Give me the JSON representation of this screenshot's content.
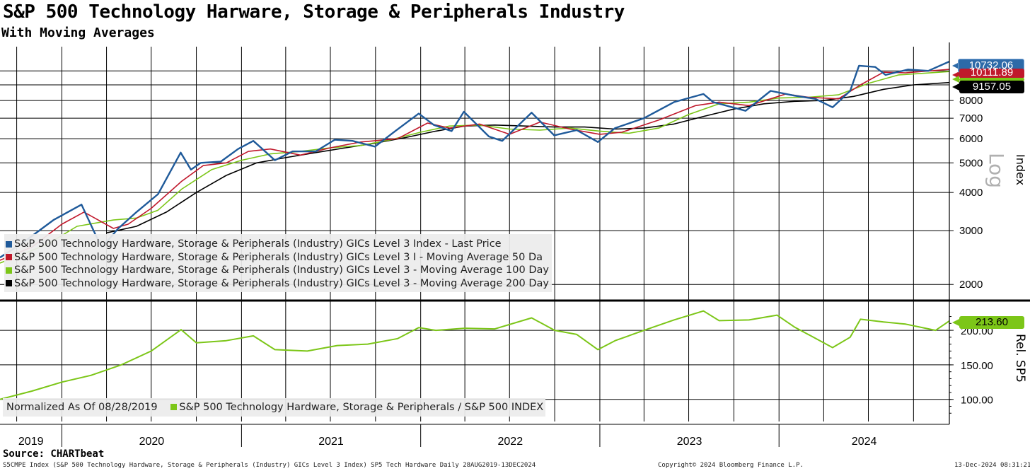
{
  "title": "S&P 500 Technology Harware, Storage & Peripherals Industry",
  "subtitle": "With Moving Averages",
  "source": "Source: CHARTbeat",
  "footer": {
    "left": "S5CMPE Index (S&P 500 Technology Hardware, Storage & Peripherals (Industry) GICs Level 3 Index) SP5 Tech Hardware  Daily 28AUG2019-13DEC2024",
    "center": "Copyright© 2024 Bloomberg Finance L.P.",
    "right": "13-Dec-2024 08:31:21"
  },
  "colors": {
    "price": "#1f5a9a",
    "ma50": "#c0182b",
    "ma100": "#7cc618",
    "ma200": "#000000",
    "relative": "#7cc618"
  },
  "top_panel": {
    "axis_title": "Index",
    "scale_label": "Log",
    "legend": [
      {
        "label": "S&P 500 Technology Hardware, Storage & Peripherals (Industry) GICs Level 3 Index - Last Price",
        "color": "#1f5a9a"
      },
      {
        "label": "S&P 500 Technology Hardware, Storage & Peripherals (Industry) GICs Level 3 I - Moving Average 50 Da",
        "color": "#c0182b"
      },
      {
        "label": "S&P 500 Technology Hardware, Storage & Peripherals (Industry) GICs Level 3 - Moving Average 100 Day",
        "color": "#7cc618"
      },
      {
        "label": "S&P 500 Technology Hardware, Storage & Peripherals (Industry) GICs Level 3 - Moving Average 200 Day",
        "color": "#000000"
      }
    ],
    "badges": [
      {
        "text": "10732.06",
        "bg": "#2d6aa8",
        "fg": "#ffffff"
      },
      {
        "text": "10111.89",
        "bg": "#c0182b",
        "fg": "#ffffff"
      },
      {
        "text": "",
        "bg": "#7cc618",
        "fg": "#000000"
      },
      {
        "text": "9157.05",
        "bg": "#000000",
        "fg": "#ffffff"
      }
    ]
  },
  "bottom_panel": {
    "axis_title": "Rel. SP5",
    "legend_note": "Normalized As Of 08/28/2019",
    "legend_label": "S&P 500 Technology Hardware, Storage & Peripherals / S&P 500 INDEX",
    "legend_color": "#7cc618",
    "badge": {
      "text": "213.60",
      "bg": "#7cc618",
      "fg": "#000000"
    }
  },
  "chart_data": {
    "type": "line",
    "x_start": "2019-08-28",
    "x_end": "2024-12-13",
    "x_tick_labels": [
      "2019",
      "2020",
      "2021",
      "2022",
      "2023",
      "2024"
    ],
    "top": {
      "y_scale": "log",
      "ylim": [
        1800,
        12000
      ],
      "y_ticks": [
        2000,
        3000,
        4000,
        5000,
        6000,
        7000,
        8000
      ],
      "y_tick_labels": [
        "2000",
        "3000",
        "4000",
        "5000",
        "6000",
        "7000",
        "8000"
      ],
      "series": [
        {
          "name": "S&P 500 Technology Hardware, Storage & Peripherals (Industry) GICs Level 3 Index - Last Price",
          "points": [
            [
              "2019-08-28",
              2450
            ],
            [
              "2019-10-15",
              2750
            ],
            [
              "2019-12-15",
              3250
            ],
            [
              "2020-02-10",
              3650
            ],
            [
              "2020-03-10",
              2900
            ],
            [
              "2020-03-23",
              2650
            ],
            [
              "2020-04-25",
              3050
            ],
            [
              "2020-06-01",
              3450
            ],
            [
              "2020-07-15",
              3950
            ],
            [
              "2020-08-30",
              5400
            ],
            [
              "2020-09-20",
              4750
            ],
            [
              "2020-10-10",
              5000
            ],
            [
              "2020-11-20",
              5050
            ],
            [
              "2020-12-25",
              5550
            ],
            [
              "2021-01-25",
              5900
            ],
            [
              "2021-03-10",
              5100
            ],
            [
              "2021-04-15",
              5450
            ],
            [
              "2021-06-01",
              5450
            ],
            [
              "2021-07-10",
              5950
            ],
            [
              "2021-08-15",
              5900
            ],
            [
              "2021-09-30",
              5650
            ],
            [
              "2021-11-10",
              6350
            ],
            [
              "2021-12-28",
              7250
            ],
            [
              "2022-01-28",
              6650
            ],
            [
              "2022-03-05",
              6350
            ],
            [
              "2022-03-30",
              7350
            ],
            [
              "2022-05-20",
              6100
            ],
            [
              "2022-06-16",
              5900
            ],
            [
              "2022-08-15",
              7300
            ],
            [
              "2022-09-30",
              6150
            ],
            [
              "2022-11-15",
              6400
            ],
            [
              "2022-12-28",
              5850
            ],
            [
              "2023-02-01",
              6500
            ],
            [
              "2023-04-01",
              7000
            ],
            [
              "2023-06-01",
              7900
            ],
            [
              "2023-07-31",
              8400
            ],
            [
              "2023-08-20",
              7900
            ],
            [
              "2023-10-25",
              7400
            ],
            [
              "2023-12-15",
              8600
            ],
            [
              "2024-02-01",
              8300
            ],
            [
              "2024-03-15",
              8100
            ],
            [
              "2024-04-19",
              7600
            ],
            [
              "2024-05-25",
              8600
            ],
            [
              "2024-06-12",
              10400
            ],
            [
              "2024-07-15",
              10300
            ],
            [
              "2024-08-05",
              9700
            ],
            [
              "2024-09-20",
              10100
            ],
            [
              "2024-10-31",
              10000
            ],
            [
              "2024-12-13",
              10732
            ]
          ]
        },
        {
          "name": "S&P 500 Technology Hardware, Storage & Peripherals (Industry) GICs Level 3 I - Moving Average 50 Da",
          "points": [
            [
              "2019-08-28",
              2400
            ],
            [
              "2019-11-01",
              2650
            ],
            [
              "2020-01-01",
              3150
            ],
            [
              "2020-02-15",
              3450
            ],
            [
              "2020-04-15",
              3050
            ],
            [
              "2020-05-15",
              3150
            ],
            [
              "2020-07-01",
              3550
            ],
            [
              "2020-09-01",
              4350
            ],
            [
              "2020-10-15",
              4900
            ],
            [
              "2020-12-01",
              5000
            ],
            [
              "2021-01-15",
              5450
            ],
            [
              "2021-03-01",
              5550
            ],
            [
              "2021-05-01",
              5300
            ],
            [
              "2021-07-01",
              5600
            ],
            [
              "2021-09-01",
              5850
            ],
            [
              "2021-11-15",
              6000
            ],
            [
              "2022-01-15",
              6750
            ],
            [
              "2022-03-01",
              6500
            ],
            [
              "2022-05-01",
              6700
            ],
            [
              "2022-07-01",
              6200
            ],
            [
              "2022-09-01",
              6800
            ],
            [
              "2022-11-01",
              6450
            ],
            [
              "2023-01-01",
              6200
            ],
            [
              "2023-02-15",
              6300
            ],
            [
              "2023-05-01",
              6900
            ],
            [
              "2023-07-15",
              7700
            ],
            [
              "2023-09-01",
              7900
            ],
            [
              "2023-11-01",
              7700
            ],
            [
              "2024-01-15",
              8400
            ],
            [
              "2024-03-01",
              8200
            ],
            [
              "2024-05-01",
              8100
            ],
            [
              "2024-06-15",
              9000
            ],
            [
              "2024-08-01",
              9900
            ],
            [
              "2024-09-15",
              9850
            ],
            [
              "2024-12-13",
              10112
            ]
          ]
        },
        {
          "name": "S&P 500 Technology Hardware, Storage & Peripherals (Industry) GICs Level 3 - Moving Average 100 Day",
          "points": [
            [
              "2019-08-28",
              2350
            ],
            [
              "2019-12-01",
              2700
            ],
            [
              "2020-02-01",
              3100
            ],
            [
              "2020-04-15",
              3250
            ],
            [
              "2020-06-01",
              3300
            ],
            [
              "2020-07-15",
              3500
            ],
            [
              "2020-09-01",
              4100
            ],
            [
              "2020-11-01",
              4750
            ],
            [
              "2021-01-01",
              5100
            ],
            [
              "2021-03-01",
              5350
            ],
            [
              "2021-05-01",
              5450
            ],
            [
              "2021-07-01",
              5600
            ],
            [
              "2021-09-01",
              5700
            ],
            [
              "2021-11-01",
              5950
            ],
            [
              "2022-01-01",
              6300
            ],
            [
              "2022-03-01",
              6600
            ],
            [
              "2022-05-01",
              6650
            ],
            [
              "2022-07-01",
              6450
            ],
            [
              "2022-09-01",
              6400
            ],
            [
              "2022-11-01",
              6500
            ],
            [
              "2023-01-01",
              6350
            ],
            [
              "2023-03-01",
              6250
            ],
            [
              "2023-05-01",
              6500
            ],
            [
              "2023-07-01",
              7200
            ],
            [
              "2023-09-01",
              7800
            ],
            [
              "2023-11-01",
              7900
            ],
            [
              "2024-01-01",
              8150
            ],
            [
              "2024-03-01",
              8200
            ],
            [
              "2024-05-01",
              8350
            ],
            [
              "2024-07-01",
              9100
            ],
            [
              "2024-09-01",
              9700
            ],
            [
              "2024-12-13",
              9950
            ]
          ]
        },
        {
          "name": "S&P 500 Technology Hardware, Storage & Peripherals (Industry) GICs Level 3 - Moving Average 200 Day",
          "points": [
            [
              "2020-04-01",
              2950
            ],
            [
              "2020-06-01",
              3100
            ],
            [
              "2020-08-01",
              3450
            ],
            [
              "2020-10-01",
              4000
            ],
            [
              "2020-12-01",
              4550
            ],
            [
              "2021-02-01",
              5000
            ],
            [
              "2021-04-01",
              5200
            ],
            [
              "2021-06-01",
              5400
            ],
            [
              "2021-08-01",
              5600
            ],
            [
              "2021-10-01",
              5800
            ],
            [
              "2021-12-01",
              6050
            ],
            [
              "2022-02-01",
              6350
            ],
            [
              "2022-04-01",
              6600
            ],
            [
              "2022-06-01",
              6650
            ],
            [
              "2022-08-01",
              6600
            ],
            [
              "2022-10-01",
              6550
            ],
            [
              "2022-12-01",
              6550
            ],
            [
              "2023-02-01",
              6450
            ],
            [
              "2023-04-01",
              6500
            ],
            [
              "2023-06-01",
              6700
            ],
            [
              "2023-08-01",
              7100
            ],
            [
              "2023-10-01",
              7500
            ],
            [
              "2023-12-01",
              7800
            ],
            [
              "2024-02-01",
              7950
            ],
            [
              "2024-04-01",
              8000
            ],
            [
              "2024-06-01",
              8250
            ],
            [
              "2024-08-01",
              8700
            ],
            [
              "2024-10-01",
              9000
            ],
            [
              "2024-12-13",
              9157
            ]
          ]
        }
      ]
    },
    "bottom": {
      "y_scale": "linear",
      "ylim": [
        68,
        240
      ],
      "y_ticks": [
        100,
        150,
        200
      ],
      "y_tick_labels": [
        "100.00",
        "150.00",
        "200.00"
      ],
      "series": [
        {
          "name": "S&P 500 Technology Hardware, Storage & Peripherals / S&P 500 INDEX",
          "points": [
            [
              "2019-08-28",
              100
            ],
            [
              "2019-11-01",
              112
            ],
            [
              "2020-01-01",
              125
            ],
            [
              "2020-03-01",
              135
            ],
            [
              "2020-05-01",
              150
            ],
            [
              "2020-07-01",
              170
            ],
            [
              "2020-08-31",
              201
            ],
            [
              "2020-10-01",
              182
            ],
            [
              "2020-12-01",
              185
            ],
            [
              "2021-01-25",
              192
            ],
            [
              "2021-03-10",
              172
            ],
            [
              "2021-05-15",
              170
            ],
            [
              "2021-07-15",
              178
            ],
            [
              "2021-09-15",
              180
            ],
            [
              "2021-11-15",
              188
            ],
            [
              "2021-12-28",
              204
            ],
            [
              "2022-02-01",
              200
            ],
            [
              "2022-04-01",
              203
            ],
            [
              "2022-06-01",
              202
            ],
            [
              "2022-08-15",
              218
            ],
            [
              "2022-10-01",
              200
            ],
            [
              "2022-11-15",
              194
            ],
            [
              "2022-12-28",
              172
            ],
            [
              "2023-02-01",
              185
            ],
            [
              "2023-04-01",
              200
            ],
            [
              "2023-06-01",
              215
            ],
            [
              "2023-07-31",
              228
            ],
            [
              "2023-09-01",
              214
            ],
            [
              "2023-11-01",
              215
            ],
            [
              "2023-12-28",
              222
            ],
            [
              "2024-02-01",
              205
            ],
            [
              "2024-04-19",
              175
            ],
            [
              "2024-05-25",
              190
            ],
            [
              "2024-06-15",
              216
            ],
            [
              "2024-08-01",
              212
            ],
            [
              "2024-09-15",
              209
            ],
            [
              "2024-11-15",
              200
            ],
            [
              "2024-12-13",
              213.6
            ]
          ]
        }
      ]
    }
  }
}
